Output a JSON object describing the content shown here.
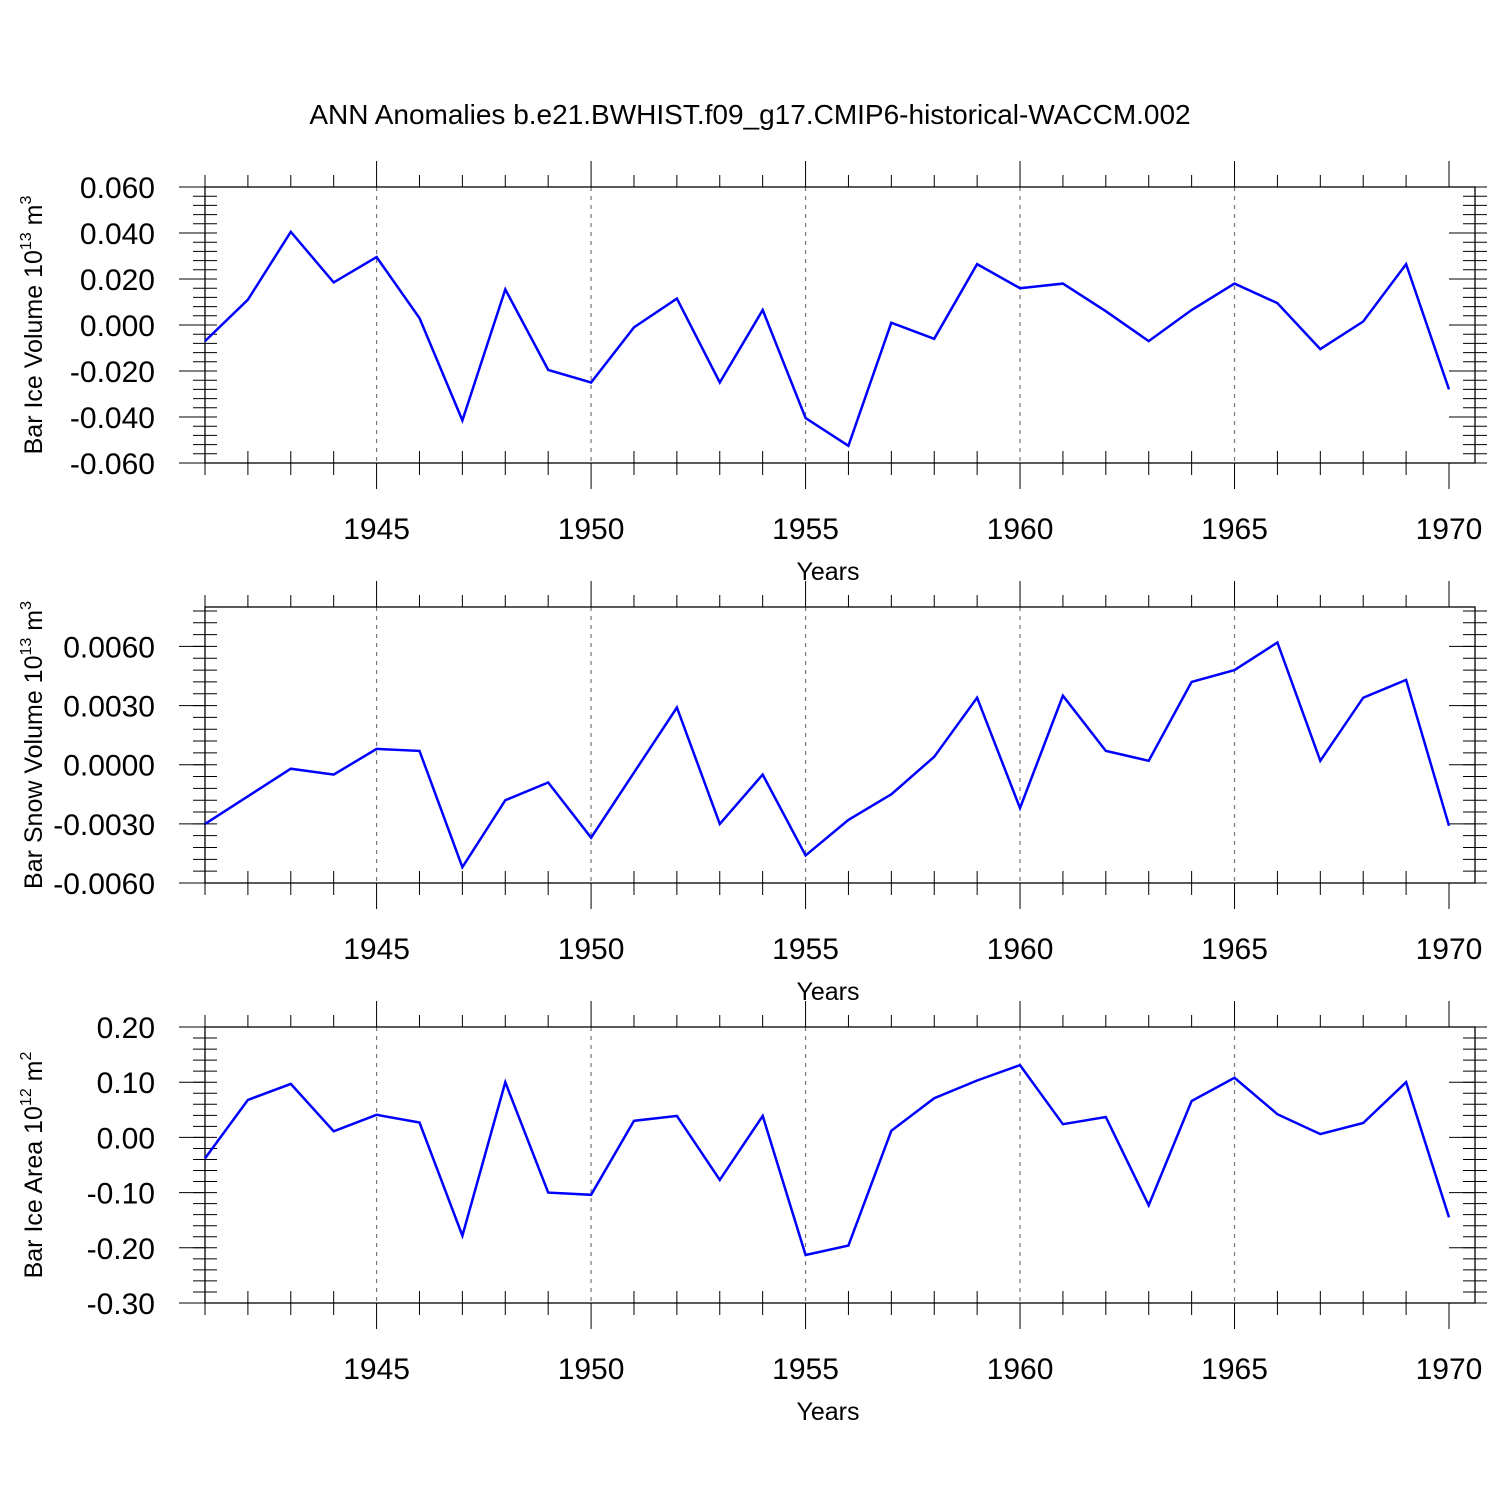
{
  "title": "ANN Anomalies b.e21.BWHIST.f09_g17.CMIP6-historical-WACCM.002",
  "colors": {
    "line": "#0000ff",
    "axis": "#000000",
    "grid": "#777777"
  },
  "chart_data": [
    {
      "type": "line",
      "ylabel": "Bar Ice Volume 10",
      "ylabel_exp": "13",
      "ylabel_unit": " m",
      "ylabel_unit_exp": "3",
      "xlabel": "Years",
      "xlim": [
        1941,
        1970
      ],
      "ylim": [
        -0.06,
        0.06
      ],
      "xticks": [
        1945,
        1950,
        1955,
        1960,
        1965,
        1970
      ],
      "yticks": [
        -0.06,
        -0.04,
        -0.02,
        0.0,
        0.02,
        0.04,
        0.06
      ],
      "ytick_labels": [
        "-0.060",
        "-0.040",
        "-0.020",
        "0.000",
        "0.020",
        "0.040",
        "0.060"
      ],
      "grid": "dashed vertical at major x ticks",
      "x": [
        1941,
        1942,
        1943,
        1944,
        1945,
        1946,
        1947,
        1948,
        1949,
        1950,
        1951,
        1952,
        1953,
        1954,
        1955,
        1956,
        1957,
        1958,
        1959,
        1960,
        1961,
        1962,
        1963,
        1964,
        1965,
        1966,
        1967,
        1968,
        1969,
        1970
      ],
      "values": [
        -0.007,
        0.011,
        0.0405,
        0.0185,
        0.0295,
        0.003,
        -0.0415,
        0.0155,
        -0.0195,
        -0.025,
        -0.001,
        0.0115,
        -0.025,
        0.0065,
        -0.0405,
        -0.0525,
        0.001,
        -0.006,
        0.0265,
        0.016,
        0.018,
        0.006,
        -0.007,
        0.0065,
        0.018,
        0.0095,
        -0.0105,
        0.0015,
        0.0265,
        -0.028
      ]
    },
    {
      "type": "line",
      "ylabel": "Bar Snow Volume 10",
      "ylabel_exp": "13",
      "ylabel_unit": " m",
      "ylabel_unit_exp": "3",
      "xlabel": "Years",
      "xlim": [
        1941,
        1970
      ],
      "ylim": [
        -0.006,
        0.008
      ],
      "xticks": [
        1945,
        1950,
        1955,
        1960,
        1965,
        1970
      ],
      "yticks": [
        -0.006,
        -0.003,
        0.0,
        0.003,
        0.006
      ],
      "ytick_labels": [
        "-0.0060",
        "-0.0030",
        "0.0000",
        "0.0030",
        "0.0060"
      ],
      "grid": "dashed vertical at major x ticks",
      "x": [
        1941,
        1942,
        1943,
        1944,
        1945,
        1946,
        1947,
        1948,
        1949,
        1950,
        1951,
        1952,
        1953,
        1954,
        1955,
        1956,
        1957,
        1958,
        1959,
        1960,
        1961,
        1962,
        1963,
        1964,
        1965,
        1966,
        1967,
        1968,
        1969,
        1970
      ],
      "values": [
        -0.003,
        -0.0016,
        -0.0002,
        -0.0005,
        0.0008,
        0.0007,
        -0.0052,
        -0.0018,
        -0.0009,
        -0.0037,
        -0.0004,
        0.0029,
        -0.003,
        -0.0005,
        -0.0046,
        -0.0028,
        -0.0015,
        0.0004,
        0.0034,
        -0.0022,
        0.0035,
        0.0007,
        0.0002,
        0.0042,
        0.0048,
        0.0062,
        0.0002,
        0.0034,
        0.0043,
        -0.0031
      ]
    },
    {
      "type": "line",
      "ylabel": "Bar Ice Area 10",
      "ylabel_exp": "12",
      "ylabel_unit": " m",
      "ylabel_unit_exp": "2",
      "xlabel": "Years",
      "xlim": [
        1941,
        1970
      ],
      "ylim": [
        -0.3,
        0.2
      ],
      "xticks": [
        1945,
        1950,
        1955,
        1960,
        1965,
        1970
      ],
      "yticks": [
        -0.3,
        -0.2,
        -0.1,
        0.0,
        0.1,
        0.2
      ],
      "ytick_labels": [
        "-0.30",
        "-0.20",
        "-0.10",
        "0.00",
        "0.10",
        "0.20"
      ],
      "grid": "dashed vertical at major x ticks",
      "x": [
        1941,
        1942,
        1943,
        1944,
        1945,
        1946,
        1947,
        1948,
        1949,
        1950,
        1951,
        1952,
        1953,
        1954,
        1955,
        1956,
        1957,
        1958,
        1959,
        1960,
        1961,
        1962,
        1963,
        1964,
        1965,
        1966,
        1967,
        1968,
        1969,
        1970
      ],
      "values": [
        -0.038,
        0.068,
        0.097,
        0.011,
        0.041,
        0.027,
        -0.178,
        0.1,
        -0.1,
        -0.104,
        0.03,
        0.039,
        -0.077,
        0.039,
        -0.213,
        -0.196,
        0.012,
        0.071,
        0.103,
        0.131,
        0.024,
        0.037,
        -0.123,
        0.066,
        0.108,
        0.042,
        0.006,
        0.026,
        0.1,
        -0.145
      ]
    }
  ]
}
